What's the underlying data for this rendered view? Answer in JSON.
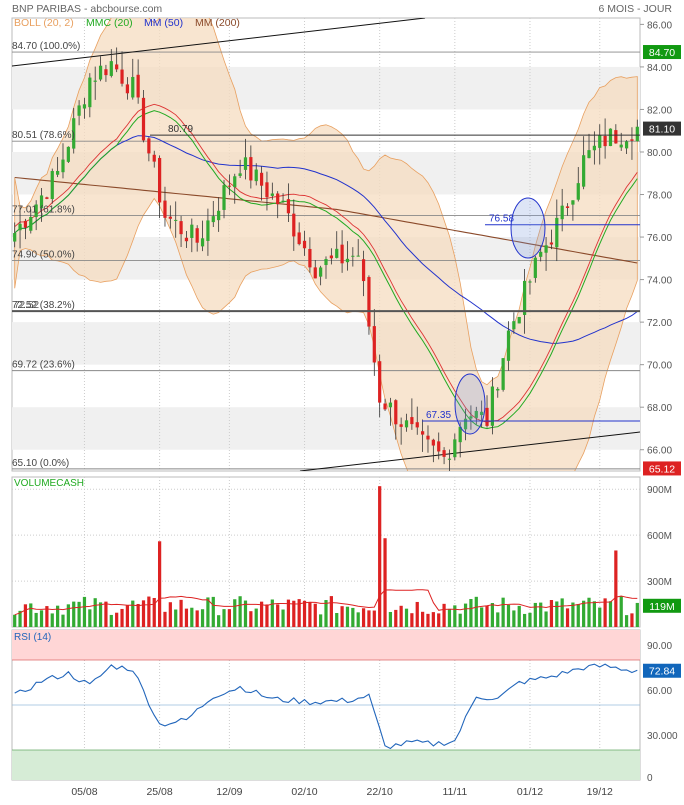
{
  "header": {
    "title": "BNP PARIBAS - abcbourse.com",
    "period": "6 MOIS - JOUR"
  },
  "legend": [
    {
      "label": "BOLL (20, 2)",
      "color": "#e8a060"
    },
    {
      "label": "MMC (20)",
      "color": "#22aa22"
    },
    {
      "label": "MM (50)",
      "color": "#2233cc"
    },
    {
      "label": "MM (200)",
      "color": "#8b4a2a"
    }
  ],
  "colors": {
    "up": "#33aa33",
    "down": "#dd2222",
    "boll_fill": "#f5dcc0",
    "boll_line": "#e8a060",
    "mmc20": "#22aa22",
    "mm50": "#2233cc",
    "mm200": "#8b4a2a",
    "rsi_line": "#2266bb",
    "vol_ma": "#dd2222",
    "badge_green": "#119911",
    "badge_red": "#dd2222",
    "badge_blue": "#1166bb"
  },
  "chart_data": [
    {
      "type": "candlestick",
      "panel": "price",
      "ylim": [
        65,
        86.3
      ],
      "y_ticks": [
        "66.00",
        "68.00",
        "70.00",
        "72.00",
        "74.00",
        "76.00",
        "78.00",
        "80.00",
        "82.00",
        "84.00",
        "86.00"
      ],
      "x_ticks": [
        "05/08",
        "25/08",
        "12/09",
        "02/10",
        "22/10",
        "11/11",
        "01/12",
        "19/12"
      ],
      "x_tick_index": [
        13,
        27,
        40,
        54,
        68,
        82,
        96,
        109
      ],
      "fib_levels": [
        {
          "label": "84.70 (100.0%)",
          "value": 84.7
        },
        {
          "label": "80.51 (78.6%)",
          "value": 80.51
        },
        {
          "label": "77.01 (61.8%)",
          "value": 77.01
        },
        {
          "label": "74.90 (50.0%)",
          "value": 74.9
        },
        {
          "label": "72.52 (38.2%)",
          "value": 72.52
        },
        {
          "label": "69.72 (23.6%)",
          "value": 69.72
        },
        {
          "label": "65.10 (0.0%)",
          "value": 65.1
        }
      ],
      "horizontal_lines": [
        {
          "label": "80.79",
          "value": 80.79,
          "color": "#333333"
        },
        {
          "label": "76.58",
          "value": 76.58,
          "color": "#2233cc"
        },
        {
          "label": "67.35",
          "value": 67.35,
          "color": "#2233cc"
        },
        {
          "label": "72.52",
          "value": 72.52,
          "color": "#555555"
        }
      ],
      "last_badges": [
        {
          "label": "84.70",
          "value": 84.7,
          "color": "#119911"
        },
        {
          "label": "81.10",
          "value": 81.1,
          "color": "#333333"
        },
        {
          "label": "65.12",
          "value": 65.12,
          "color": "#dd2222"
        }
      ],
      "key_closes": [
        {
          "index": 0,
          "close": 76.2
        },
        {
          "index": 8,
          "close": 79.0
        },
        {
          "index": 14,
          "close": 83.5
        },
        {
          "index": 18,
          "close": 84.2
        },
        {
          "index": 22,
          "close": 83.0
        },
        {
          "index": 28,
          "close": 77.0
        },
        {
          "index": 34,
          "close": 75.8
        },
        {
          "index": 42,
          "close": 79.5
        },
        {
          "index": 50,
          "close": 77.4
        },
        {
          "index": 56,
          "close": 74.6
        },
        {
          "index": 64,
          "close": 75.2
        },
        {
          "index": 68,
          "close": 68.5
        },
        {
          "index": 76,
          "close": 66.2
        },
        {
          "index": 80,
          "close": 65.6
        },
        {
          "index": 84,
          "close": 67.8
        },
        {
          "index": 88,
          "close": 67.4
        },
        {
          "index": 92,
          "close": 71.5
        },
        {
          "index": 98,
          "close": 75.2
        },
        {
          "index": 102,
          "close": 77.0
        },
        {
          "index": 106,
          "close": 79.6
        },
        {
          "index": 110,
          "close": 80.6
        },
        {
          "index": 115,
          "close": 81.1
        }
      ]
    },
    {
      "type": "bar",
      "panel": "volume",
      "label": "VOLUMECASH",
      "ylim": [
        0,
        980
      ],
      "y_ticks": [
        "300M",
        "600M",
        "900M"
      ],
      "last_badge": {
        "label": "119M",
        "color": "#119911"
      },
      "spikes": [
        {
          "index": 27,
          "value": 560
        },
        {
          "index": 68,
          "value": 920
        },
        {
          "index": 69,
          "value": 580
        },
        {
          "index": 112,
          "value": 500
        }
      ],
      "base_level": 140
    },
    {
      "type": "line",
      "panel": "rsi",
      "label": "RSI (14)",
      "ylim": [
        0,
        100
      ],
      "y_ticks": [
        "30.000",
        "60.00",
        "90.00"
      ],
      "zero_tick": "0",
      "zones": [
        {
          "from": 80,
          "to": 100,
          "color": "#ffd6d6"
        },
        {
          "from": 0,
          "to": 20,
          "color": "#d6ecd6"
        }
      ],
      "last_badge": {
        "label": "72.84",
        "color": "#1166bb"
      },
      "key_points": [
        {
          "index": 0,
          "value": 56
        },
        {
          "index": 5,
          "value": 66
        },
        {
          "index": 10,
          "value": 71
        },
        {
          "index": 14,
          "value": 63
        },
        {
          "index": 18,
          "value": 76
        },
        {
          "index": 22,
          "value": 74
        },
        {
          "index": 27,
          "value": 37
        },
        {
          "index": 32,
          "value": 40
        },
        {
          "index": 37,
          "value": 56
        },
        {
          "index": 42,
          "value": 62
        },
        {
          "index": 48,
          "value": 54
        },
        {
          "index": 55,
          "value": 52
        },
        {
          "index": 62,
          "value": 53
        },
        {
          "index": 66,
          "value": 56
        },
        {
          "index": 69,
          "value": 22
        },
        {
          "index": 74,
          "value": 25
        },
        {
          "index": 78,
          "value": 24
        },
        {
          "index": 82,
          "value": 26
        },
        {
          "index": 86,
          "value": 56
        },
        {
          "index": 90,
          "value": 54
        },
        {
          "index": 94,
          "value": 65
        },
        {
          "index": 100,
          "value": 69
        },
        {
          "index": 106,
          "value": 75
        },
        {
          "index": 110,
          "value": 76
        },
        {
          "index": 115,
          "value": 73
        }
      ]
    }
  ]
}
